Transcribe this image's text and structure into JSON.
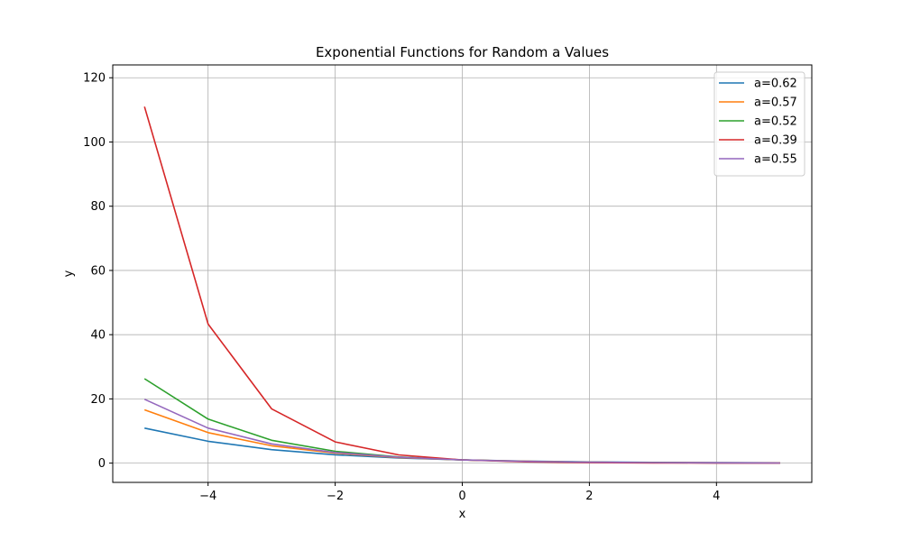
{
  "chart_data": {
    "type": "line",
    "title": "Exponential Functions for Random a Values",
    "xlabel": "x",
    "ylabel": "y",
    "xlim": [
      -5.5,
      5.5
    ],
    "ylim": [
      -6,
      124
    ],
    "xticks": [
      -4,
      -2,
      0,
      2,
      4
    ],
    "xtick_labels": [
      "−4",
      "−2",
      "0",
      "2",
      "4"
    ],
    "yticks": [
      0,
      20,
      40,
      60,
      80,
      100,
      120
    ],
    "ytick_labels": [
      "0",
      "20",
      "40",
      "60",
      "80",
      "100",
      "120"
    ],
    "grid": true,
    "legend_position": "top-right",
    "x": [
      -5,
      -4,
      -3,
      -2,
      -1,
      0,
      1,
      2,
      3,
      4,
      5
    ],
    "series": [
      {
        "name": "a=0.62",
        "color": "#1f77b4",
        "values": [
          10.9,
          6.8,
          4.2,
          2.6,
          1.61,
          1.0,
          0.62,
          0.38,
          0.24,
          0.15,
          0.09
        ]
      },
      {
        "name": "a=0.57",
        "color": "#ff7f0e",
        "values": [
          16.6,
          9.5,
          5.4,
          3.1,
          1.75,
          1.0,
          0.57,
          0.32,
          0.19,
          0.11,
          0.06
        ]
      },
      {
        "name": "a=0.52",
        "color": "#2ca02c",
        "values": [
          26.3,
          13.7,
          7.1,
          3.7,
          1.92,
          1.0,
          0.52,
          0.27,
          0.14,
          0.07,
          0.04
        ]
      },
      {
        "name": "a=0.39",
        "color": "#d62728",
        "values": [
          111.0,
          43.3,
          16.9,
          6.6,
          2.56,
          1.0,
          0.39,
          0.15,
          0.06,
          0.02,
          0.01
        ]
      },
      {
        "name": "a=0.55",
        "color": "#9467bd",
        "values": [
          19.9,
          10.9,
          6.0,
          3.3,
          1.82,
          1.0,
          0.55,
          0.3,
          0.17,
          0.09,
          0.05
        ]
      }
    ]
  }
}
